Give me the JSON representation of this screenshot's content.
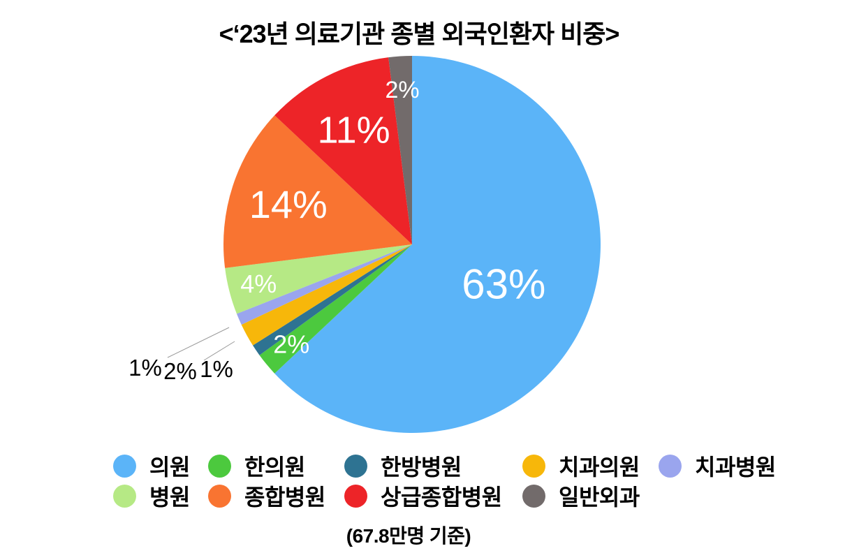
{
  "title": "<‘23년 의료기관 종별 외국인환자 비중>",
  "caption": "(67.8만명 기준)",
  "chart_data": {
    "type": "pie",
    "title": "‘23년 의료기관 종별 외국인환자 비중",
    "unit_note": "67.8만명 기준",
    "categories": [
      "의원",
      "한의원",
      "한방병원",
      "치과의원",
      "치과병원",
      "병원",
      "종합병원",
      "상급종합병원",
      "일반외과"
    ],
    "values": [
      63,
      2,
      1,
      2,
      1,
      4,
      14,
      11,
      2
    ],
    "labels": [
      "63%",
      "2%",
      "1%",
      "2%",
      "1%",
      "4%",
      "14%",
      "11%",
      "2%"
    ],
    "colors": [
      "#5BB4F8",
      "#4CC93E",
      "#2E7392",
      "#F7B70A",
      "#9AA5EE",
      "#B6E985",
      "#F97431",
      "#ED2428",
      "#726B6B"
    ],
    "start_angle": 0,
    "direction": "clockwise",
    "legend_position": "bottom",
    "inside_label_color": "#ffffff",
    "outside_label_color": "#000000",
    "leader_line_color": "#999999"
  }
}
